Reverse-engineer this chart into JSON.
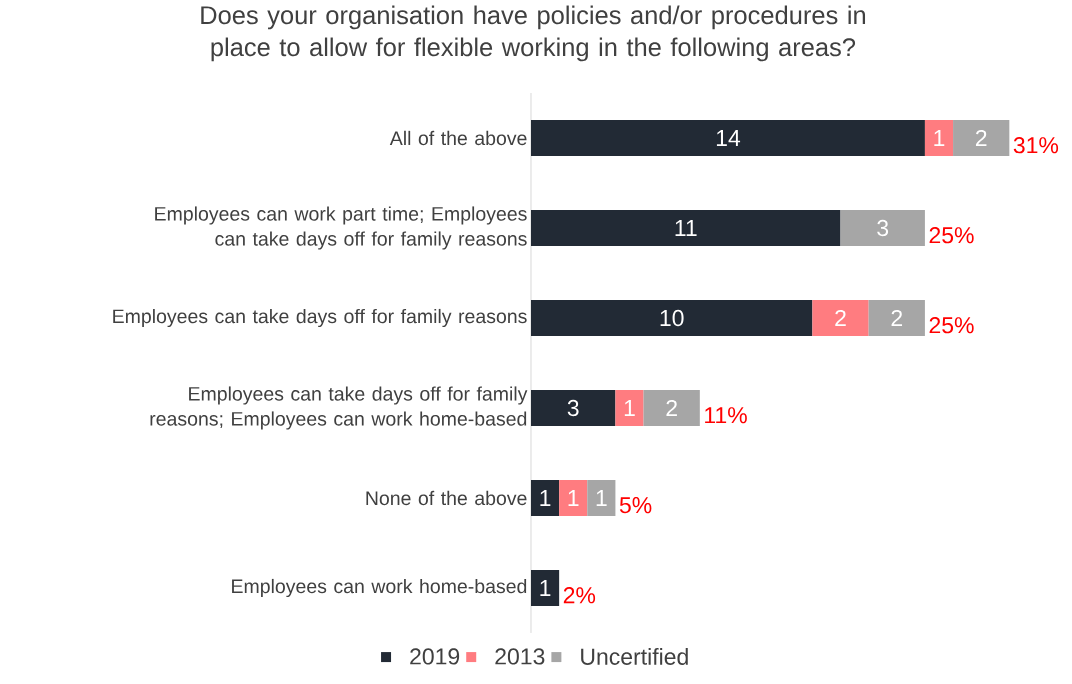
{
  "chart_data": {
    "type": "bar",
    "orientation": "horizontal",
    "stacked": true,
    "title": "Does your organisation have policies and/or procedures in place to allow for flexible working in the following areas?",
    "categories": [
      "All of the above",
      "Employees can work part time; Employees can take days off for family reasons",
      "Employees can take days off for family reasons",
      "Employees can take days off for family reasons; Employees can work home-based",
      "None of the above",
      "Employees can work home-based"
    ],
    "series": [
      {
        "name": "2019",
        "color": "#222a35",
        "values": [
          14,
          11,
          10,
          3,
          1,
          1
        ]
      },
      {
        "name": "2013",
        "color": "#ff7c80",
        "values": [
          1,
          null,
          2,
          1,
          1,
          null
        ]
      },
      {
        "name": "Uncertified",
        "color": "#a6a6a6",
        "values": [
          2,
          3,
          2,
          2,
          1,
          null
        ]
      }
    ],
    "data_labels": true,
    "annotations": [
      {
        "text": "31%",
        "x": 17,
        "y": "All of the above"
      },
      {
        "text": "25%",
        "x": 14,
        "y": "Employees can work part time; Employees can take days off for family reasons"
      },
      {
        "text": "25%",
        "x": 14,
        "y": "Employees can take days off for family reasons"
      },
      {
        "text": "11%",
        "x": 6,
        "y": "Employees can take days off for family reasons; Employees can work home-based"
      },
      {
        "text": "5%",
        "x": 3,
        "y": "None of the above"
      },
      {
        "text": "2%",
        "x": 1,
        "y": "Employees can work home-based"
      }
    ],
    "legend": "bottom"
  }
}
